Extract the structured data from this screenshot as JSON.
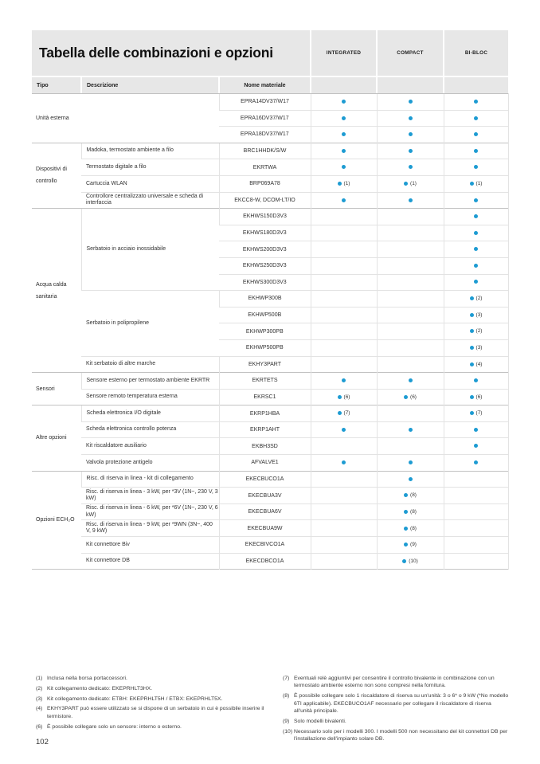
{
  "colors": {
    "dot": "#1d9bd2",
    "header_gray": "#e7e7e7"
  },
  "page": {
    "number": "102"
  },
  "table": {
    "title": "Tabella delle combinazioni e opzioni",
    "columns": [
      "INTEGRATED",
      "COMPACT",
      "BI-BLOC"
    ],
    "subheaders": {
      "tipo": "Tipo",
      "descrizione": "Descrizione",
      "nome": "Nome materiale"
    },
    "groups": [
      {
        "tipo": "Unità esterna",
        "merged": true,
        "rows": [
          {
            "name": "EPRA14DV37/W17",
            "cells": [
              "●",
              "●",
              "●"
            ]
          },
          {
            "name": "EPRA16DV37/W17",
            "cells": [
              "●",
              "●",
              "●"
            ]
          },
          {
            "name": "EPRA18DV37/W17",
            "cells": [
              "●",
              "●",
              "●"
            ]
          }
        ]
      },
      {
        "tipo": "Dispositivi di controllo",
        "rows": [
          {
            "desc": "Madoka, termostato ambiente a filo",
            "span": 1,
            "name": "BRC1HHDK/S/W",
            "cells": [
              "●",
              "●",
              "●"
            ]
          },
          {
            "desc": "Termostato digitale a filo",
            "span": 1,
            "name": "EKRTWA",
            "cells": [
              "●",
              "●",
              "●"
            ]
          },
          {
            "desc": "Cartuccia WLAN",
            "span": 1,
            "name": "BRP069A78",
            "cells": [
              "● (1)",
              "● (1)",
              "● (1)"
            ]
          },
          {
            "desc": "Controllore centralizzato universale e scheda di interfaccia",
            "span": 1,
            "name": "EKCC8-W, DCOM-LT/IO",
            "cells": [
              "●",
              "●",
              "●"
            ]
          }
        ]
      },
      {
        "tipo": "Acqua calda sanitaria",
        "rows": [
          {
            "desc": "Serbatoio in acciaio inossidabile",
            "span": 5,
            "name": "EKHWS150D3V3",
            "cells": [
              "",
              "",
              "●"
            ]
          },
          {
            "name": "EKHWS180D3V3",
            "cells": [
              "",
              "",
              "●"
            ]
          },
          {
            "name": "EKHWS200D3V3",
            "cells": [
              "",
              "",
              "●"
            ]
          },
          {
            "name": "EKHWS250D3V3",
            "cells": [
              "",
              "",
              "●"
            ]
          },
          {
            "name": "EKHWS300D3V3",
            "cells": [
              "",
              "",
              "●"
            ]
          },
          {
            "desc": "Serbatoio in polipropilene",
            "span": 4,
            "name": "EKHWP300B",
            "cells": [
              "",
              "",
              "● (2)"
            ]
          },
          {
            "name": "EKHWP500B",
            "cells": [
              "",
              "",
              "● (3)"
            ]
          },
          {
            "name": "EKHWP300PB",
            "cells": [
              "",
              "",
              "● (2)"
            ]
          },
          {
            "name": "EKHWP500PB",
            "cells": [
              "",
              "",
              "● (3)"
            ]
          },
          {
            "desc": "Kit serbatoio di altre marche",
            "span": 1,
            "name": "EKHY3PART",
            "cells": [
              "",
              "",
              "● (4)"
            ]
          }
        ]
      },
      {
        "tipo": "Sensori",
        "rows": [
          {
            "desc": "Sensore esterno per termostato ambiente EKRTR",
            "span": 1,
            "name": "EKRTETS",
            "cells": [
              "●",
              "●",
              "●"
            ]
          },
          {
            "desc": "Sensore remoto temperatura esterna",
            "span": 1,
            "name": "EKRSC1",
            "cells": [
              "● (6)",
              "● (6)",
              "● (6)"
            ]
          }
        ]
      },
      {
        "tipo": "Altre opzioni",
        "rows": [
          {
            "desc": "Scheda elettronica I/O digitale",
            "span": 1,
            "name": "EKRP1HBA",
            "cells": [
              "● (7)",
              "",
              "● (7)"
            ]
          },
          {
            "desc": "Scheda elettronica controllo potenza",
            "span": 1,
            "name": "EKRP1AHT",
            "cells": [
              "●",
              "●",
              "●"
            ]
          },
          {
            "desc": "Kit riscaldatore ausiliario",
            "span": 1,
            "name": "EKBH3SD",
            "cells": [
              "",
              "",
              "●"
            ]
          },
          {
            "desc": "Valvola protezione antigelo",
            "span": 1,
            "name": "AFVALVE1",
            "cells": [
              "●",
              "●",
              "●"
            ]
          }
        ]
      },
      {
        "tipo": "Opzioni ECH₂O",
        "rows": [
          {
            "desc": "Risc. di riserva in linea - kit di collegamento",
            "span": 1,
            "name": "EKECBUCO1A",
            "cells": [
              "",
              "●",
              ""
            ]
          },
          {
            "desc": "Risc. di riserva in linea - 3 kW, per *3V (1N~, 230 V, 3 kW)",
            "span": 1,
            "name": "EKECBUA3V",
            "cells": [
              "",
              "● (8)",
              ""
            ]
          },
          {
            "desc": "Risc. di riserva in linea - 6 kW, per *6V (1N~, 230 V, 6 kW)",
            "span": 1,
            "name": "EKECBUA6V",
            "cells": [
              "",
              "● (8)",
              ""
            ]
          },
          {
            "desc": "Risc. di riserva in linea - 9 kW, per *9WN (3N~, 400 V, 9 kW)",
            "span": 1,
            "name": "EKECBUA9W",
            "cells": [
              "",
              "● (8)",
              ""
            ]
          },
          {
            "desc": "Kit connettore Biv",
            "span": 1,
            "name": "EKECBIVCO1A",
            "cells": [
              "",
              "● (9)",
              ""
            ]
          },
          {
            "desc": "Kit connettore DB",
            "span": 1,
            "name": "EKECDBCO1A",
            "cells": [
              "",
              "● (10)",
              ""
            ]
          }
        ]
      }
    ]
  },
  "footnotes": {
    "left": [
      {
        "num": "(1)",
        "text": "Inclusa nella borsa portaccessori."
      },
      {
        "num": "(2)",
        "text": "Kit collegamento dedicato: EKEPRHLT3HX."
      },
      {
        "num": "(3)",
        "text": "Kit collegamento dedicato: ETBH: EKEPRHLT5H / ETBX: EKEPRHLT5X."
      },
      {
        "num": "(4)",
        "text": "EKHY3PART può essere utilizzato se si dispone di un serbatoio in cui è possibile inserire il termistore."
      },
      {
        "num": "(6)",
        "text": "È possibile collegare solo un sensore: interno o esterno."
      }
    ],
    "right": [
      {
        "num": "(7)",
        "text": "Eventuali relè aggiuntivi per consentire il controllo bivalente in combinazione con un termostato ambiente esterno non sono compresi nella fornitura."
      },
      {
        "num": "(8)",
        "text": "È possibile collegare solo 1 riscaldatore di riserva su un'unità: 3 o 6* o 9 kW (*No modello 6TI applicabile). EKECBUCO1AF necessario per collegare il riscaldatore di riserva all'unità principale."
      },
      {
        "num": "(9)",
        "text": "Solo modelli bivalenti."
      },
      {
        "num": "(10)",
        "text": "Necessario solo per i modelli 300. I modelli 500 non necessitano del kit connettori DB per l'installazione dell'impianto solare DB."
      }
    ]
  }
}
